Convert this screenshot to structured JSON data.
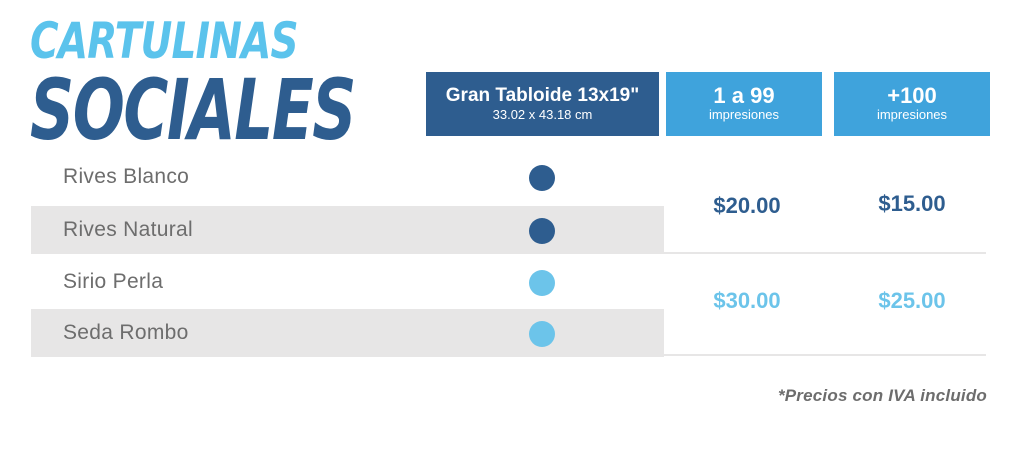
{
  "title": {
    "line1": "CARTULINAS",
    "line2": "SOCIALES"
  },
  "header": {
    "size_title": "Gran Tabloide 13x19\"",
    "size_sub": "33.02 x 43.18 cm",
    "price1_main": "1 a 99",
    "price1_sub": "impresiones",
    "price2_main": "+100",
    "price2_sub": "impresiones"
  },
  "rows": [
    {
      "label": "Rives Blanco",
      "dot_color": "#2e5d8f"
    },
    {
      "label": "Rives Natural",
      "dot_color": "#2e5d8f"
    },
    {
      "label": "Sirio Perla",
      "dot_color": "#6cc4ea"
    },
    {
      "label": "Seda Rombo",
      "dot_color": "#6cc4ea"
    }
  ],
  "price_groups": [
    {
      "price1": "$20.00",
      "price2": "$15.00",
      "color": "#2e5d8f"
    },
    {
      "price1": "$30.00",
      "price2": "$25.00",
      "color": "#6cc4ea"
    }
  ],
  "note": "*Precios con IVA incluido"
}
